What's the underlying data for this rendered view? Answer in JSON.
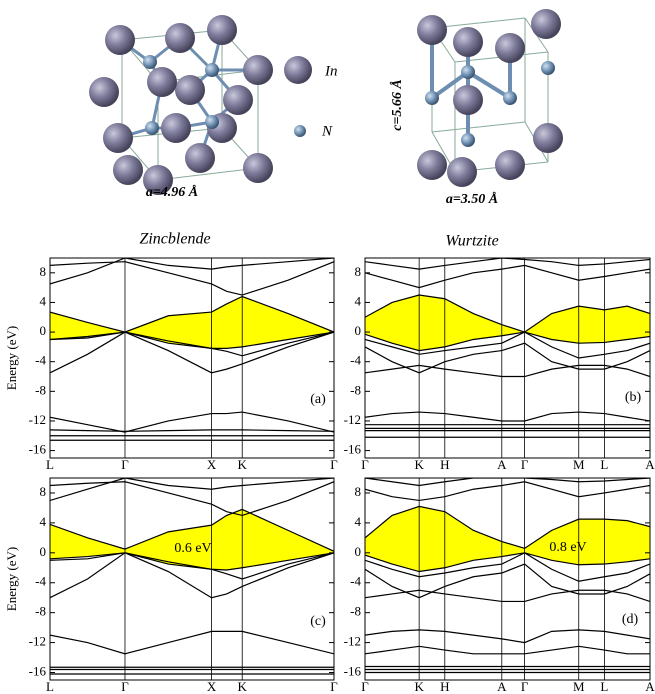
{
  "structures": {
    "legend": [
      "In",
      "N"
    ],
    "zincblende": {
      "lattice": "a=4.96 Å",
      "name": "Zincblende"
    },
    "wurtzite": {
      "lattice_a": "a=3.50 Å",
      "lattice_c": "c=5.66 Å",
      "name": "Wurtzite"
    }
  },
  "chart_data": [
    {
      "type": "line",
      "panel_label": "(a)",
      "y_label": "Energy (eV)",
      "x": [
        0,
        0.433,
        0.866,
        1.366,
        1.866,
        2.04,
        2.22,
        2.75,
        3.28
      ],
      "xlim": [
        0,
        3.28
      ],
      "xticks": [
        {
          "value": 0,
          "label": "L"
        },
        {
          "value": 0.866,
          "label": "Γ"
        },
        {
          "value": 1.866,
          "label": "X"
        },
        {
          "value": 2.22,
          "label": "K"
        },
        {
          "value": 3.28,
          "label": "Γ"
        }
      ],
      "ylim": [
        -17,
        10
      ],
      "yticks": [
        8,
        4,
        0,
        -4,
        -8,
        -12,
        -16
      ],
      "fill_between": [
        0,
        1
      ],
      "fill_color": "#ffff00",
      "series": [
        {
          "color": "#000000",
          "values": [
            2.7,
            1.3,
            0,
            2.2,
            2.7,
            3.8,
            4.8,
            2.5,
            0
          ]
        },
        {
          "color": "#000000",
          "values": [
            -1.0,
            -0.6,
            0,
            -1.5,
            -2.2,
            -2.2,
            -2.0,
            -1.0,
            0
          ]
        },
        {
          "color": "#000000",
          "values": [
            6.5,
            8,
            10,
            9,
            8.5,
            8.8,
            9,
            9.5,
            10
          ]
        },
        {
          "color": "#000000",
          "values": [
            9,
            9.3,
            9.5,
            8,
            6.5,
            5.5,
            5,
            7,
            9.5
          ]
        },
        {
          "color": "#000000",
          "values": [
            -1.0,
            -0.8,
            0,
            -1.2,
            -2.2,
            -2.6,
            -3.2,
            -1.5,
            0
          ]
        },
        {
          "color": "#000000",
          "values": [
            -5.5,
            -3,
            0,
            -2.5,
            -5.5,
            -5,
            -4.3,
            -2,
            0
          ]
        },
        {
          "color": "#000000",
          "values": [
            -11.5,
            -12.5,
            -13.5,
            -12,
            -11,
            -11,
            -10.8,
            -12,
            -13.5
          ]
        },
        {
          "color": "#000000",
          "values": [
            -13.2,
            -13.3,
            -13.4,
            -13.3,
            -13.2,
            -13.2,
            -13.2,
            -13.3,
            -13.4
          ]
        },
        {
          "color": "#000000",
          "values": [
            -14,
            -14,
            -14,
            -14,
            -14,
            -14,
            -14,
            -14,
            -14
          ]
        },
        {
          "color": "#000000",
          "values": [
            -14.6,
            -14.6,
            -14.6,
            -14.6,
            -14.6,
            -14.6,
            -14.6,
            -14.6,
            -14.6
          ]
        }
      ]
    },
    {
      "type": "line",
      "panel_label": "(b)",
      "x": [
        0,
        0.095,
        0.19,
        0.28,
        0.38,
        0.48,
        0.56,
        0.655,
        0.75,
        0.84,
        0.92,
        1.0
      ],
      "xlim": [
        0,
        1
      ],
      "xticks": [
        {
          "value": 0,
          "label": "Γ"
        },
        {
          "value": 0.19,
          "label": "K"
        },
        {
          "value": 0.28,
          "label": "H"
        },
        {
          "value": 0.48,
          "label": "A"
        },
        {
          "value": 0.56,
          "label": "Γ"
        },
        {
          "value": 0.75,
          "label": "M"
        },
        {
          "value": 0.84,
          "label": "L"
        },
        {
          "value": 1.0,
          "label": "A"
        }
      ],
      "ylim": [
        -17,
        10
      ],
      "yticks": [
        8,
        4,
        0,
        -4,
        -8,
        -12,
        -16
      ],
      "fill_between": [
        0,
        1
      ],
      "fill_color": "#ffff00",
      "series": [
        {
          "color": "#000000",
          "values": [
            2,
            4,
            5,
            4.5,
            2.5,
            1,
            0,
            2.5,
            3.5,
            3,
            3.5,
            2.5
          ]
        },
        {
          "color": "#000000",
          "values": [
            -0.3,
            -1.5,
            -2.5,
            -2,
            -1,
            -0.5,
            0,
            -1,
            -1.5,
            -1.4,
            -1,
            -0.6
          ]
        },
        {
          "color": "#000000",
          "values": [
            8,
            7,
            6,
            7,
            8,
            8.5,
            9,
            8,
            7,
            7.5,
            8,
            8.5
          ]
        },
        {
          "color": "#000000",
          "values": [
            9.5,
            9,
            8.5,
            9,
            9.5,
            10,
            9.8,
            9.5,
            9,
            9.2,
            9.5,
            9.8
          ]
        },
        {
          "color": "#000000",
          "values": [
            -1,
            -2,
            -3,
            -2.5,
            -2,
            -1.5,
            0,
            -2,
            -3.5,
            -3,
            -2.5,
            -1.5
          ]
        },
        {
          "color": "#000000",
          "values": [
            -2,
            -4,
            -5.5,
            -4,
            -3,
            -2.5,
            -1.5,
            -4,
            -5,
            -5,
            -4,
            -2.5
          ]
        },
        {
          "color": "#000000",
          "values": [
            -5.5,
            -5,
            -4.5,
            -5,
            -5.5,
            -6,
            -6,
            -5,
            -4.5,
            -4.5,
            -5,
            -6
          ]
        },
        {
          "color": "#000000",
          "values": [
            -11.5,
            -11,
            -10.8,
            -11,
            -11.5,
            -12,
            -12,
            -11,
            -10.8,
            -11,
            -11.5,
            -12
          ]
        },
        {
          "color": "#000000",
          "values": [
            -12.5,
            -12.5,
            -12.5,
            -12.5,
            -12.5,
            -12.5,
            -12.5,
            -12.5,
            -12.5,
            -12.5,
            -12.5,
            -12.5
          ]
        },
        {
          "color": "#000000",
          "values": [
            -13,
            -13,
            -13,
            -13,
            -13,
            -13,
            -13,
            -13,
            -13,
            -13,
            -13,
            -13
          ]
        },
        {
          "color": "#000000",
          "values": [
            -13.3,
            -13.3,
            -13.3,
            -13.3,
            -13.3,
            -13.3,
            -13.3,
            -13.3,
            -13.3,
            -13.3,
            -13.3,
            -13.3
          ]
        },
        {
          "color": "#000000",
          "values": [
            -14.2,
            -14.2,
            -14.2,
            -14.2,
            -14.2,
            -14.2,
            -14.2,
            -14.2,
            -14.2,
            -14.2,
            -14.2,
            -14.2
          ]
        }
      ]
    },
    {
      "type": "line",
      "panel_label": "(c)",
      "y_label": "Energy (eV)",
      "annotation": "0.6 eV",
      "x": [
        0,
        0.433,
        0.866,
        1.366,
        1.866,
        2.04,
        2.22,
        2.75,
        3.28
      ],
      "xlim": [
        0,
        3.28
      ],
      "xticks": [
        {
          "value": 0,
          "label": "L"
        },
        {
          "value": 0.866,
          "label": "Γ"
        },
        {
          "value": 1.866,
          "label": "X"
        },
        {
          "value": 2.22,
          "label": "K"
        },
        {
          "value": 3.28,
          "label": "Γ"
        }
      ],
      "ylim": [
        -17,
        10
      ],
      "yticks": [
        8,
        4,
        0,
        -4,
        -8,
        -12,
        -16
      ],
      "fill_between": [
        0,
        1
      ],
      "fill_color": "#ffff00",
      "series": [
        {
          "color": "#000000",
          "values": [
            3.8,
            2,
            0.5,
            2.8,
            3.7,
            5,
            5.8,
            3,
            0.2
          ]
        },
        {
          "color": "#000000",
          "values": [
            -0.8,
            -0.5,
            0,
            -1.5,
            -2.2,
            -2.3,
            -2.0,
            -1.0,
            0
          ]
        },
        {
          "color": "#000000",
          "values": [
            7,
            8.5,
            10,
            9,
            8.5,
            8.8,
            9,
            9.5,
            10
          ]
        },
        {
          "color": "#000000",
          "values": [
            9,
            9.3,
            9.5,
            8,
            6.5,
            5.5,
            5,
            7,
            9.5
          ]
        },
        {
          "color": "#000000",
          "values": [
            -1.0,
            -0.8,
            0,
            -1.2,
            -2.2,
            -2.8,
            -3.5,
            -1.5,
            0
          ]
        },
        {
          "color": "#000000",
          "values": [
            -6,
            -3.5,
            0,
            -2.5,
            -6,
            -5.5,
            -4.5,
            -2,
            0
          ]
        },
        {
          "color": "#000000",
          "values": [
            -11,
            -12,
            -13.5,
            -12,
            -10.5,
            -10.5,
            -10.5,
            -12,
            -13.5
          ]
        },
        {
          "color": "#000000",
          "values": [
            -15.3,
            -15.3,
            -15.3,
            -15.3,
            -15.3,
            -15.3,
            -15.3,
            -15.3,
            -15.3
          ]
        },
        {
          "color": "#000000",
          "values": [
            -15.6,
            -15.6,
            -15.6,
            -15.6,
            -15.6,
            -15.6,
            -15.6,
            -15.6,
            -15.6
          ]
        },
        {
          "color": "#000000",
          "values": [
            -16.2,
            -16.2,
            -16.2,
            -16.2,
            -16.2,
            -16.2,
            -16.2,
            -16.2,
            -16.2
          ]
        }
      ]
    },
    {
      "type": "line",
      "panel_label": "(d)",
      "annotation": "0.8 eV",
      "x": [
        0,
        0.095,
        0.19,
        0.28,
        0.38,
        0.48,
        0.56,
        0.655,
        0.75,
        0.84,
        0.92,
        1.0
      ],
      "xlim": [
        0,
        1
      ],
      "xticks": [
        {
          "value": 0,
          "label": "Γ"
        },
        {
          "value": 0.19,
          "label": "K"
        },
        {
          "value": 0.28,
          "label": "H"
        },
        {
          "value": 0.48,
          "label": "A"
        },
        {
          "value": 0.56,
          "label": "Γ"
        },
        {
          "value": 0.75,
          "label": "M"
        },
        {
          "value": 0.84,
          "label": "L"
        },
        {
          "value": 1.0,
          "label": "A"
        }
      ],
      "ylim": [
        -17,
        10
      ],
      "yticks": [
        8,
        4,
        0,
        -4,
        -8,
        -12,
        -16
      ],
      "fill_between": [
        0,
        1
      ],
      "fill_color": "#ffff00",
      "series": [
        {
          "color": "#000000",
          "values": [
            2,
            5,
            6.2,
            5.5,
            3,
            1.5,
            0.6,
            3,
            4.5,
            4.5,
            4.3,
            3.5
          ]
        },
        {
          "color": "#000000",
          "values": [
            -0.3,
            -1.5,
            -2.5,
            -2,
            -1,
            -0.5,
            0,
            -1,
            -1.6,
            -1.5,
            -1.2,
            -0.8
          ]
        },
        {
          "color": "#000000",
          "values": [
            8.5,
            7.5,
            7,
            7.5,
            8.5,
            9,
            9.5,
            8.5,
            7.5,
            8,
            8.5,
            9
          ]
        },
        {
          "color": "#000000",
          "values": [
            10,
            9.5,
            9,
            9.5,
            10,
            10,
            10,
            9.8,
            9.5,
            9.6,
            9.8,
            10
          ]
        },
        {
          "color": "#000000",
          "values": [
            -1,
            -2.2,
            -3.2,
            -2.7,
            -2,
            -1.5,
            0,
            -2.2,
            -3.8,
            -3.2,
            -2.7,
            -1.5
          ]
        },
        {
          "color": "#000000",
          "values": [
            -2.2,
            -4.5,
            -6,
            -4.5,
            -3.2,
            -2.7,
            -1.5,
            -4.5,
            -5.5,
            -5.5,
            -4.5,
            -2.8
          ]
        },
        {
          "color": "#000000",
          "values": [
            -6,
            -5.5,
            -5,
            -5.5,
            -6,
            -6.5,
            -6.5,
            -5.5,
            -5,
            -5,
            -5.5,
            -6.5
          ]
        },
        {
          "color": "#000000",
          "values": [
            -11,
            -10.5,
            -10.3,
            -10.5,
            -11,
            -11.5,
            -12,
            -10.5,
            -10.3,
            -10.5,
            -11,
            -11.5
          ]
        },
        {
          "color": "#000000",
          "values": [
            -13.5,
            -13,
            -12.5,
            -13,
            -13.5,
            -13.5,
            -13.5,
            -13,
            -12.5,
            -13,
            -13.5,
            -13.5
          ]
        },
        {
          "color": "#000000",
          "values": [
            -15.2,
            -15.2,
            -15.2,
            -15.2,
            -15.2,
            -15.2,
            -15.2,
            -15.2,
            -15.2,
            -15.2,
            -15.2,
            -15.2
          ]
        },
        {
          "color": "#000000",
          "values": [
            -15.6,
            -15.6,
            -15.6,
            -15.6,
            -15.6,
            -15.6,
            -15.6,
            -15.6,
            -15.6,
            -15.6,
            -15.6,
            -15.6
          ]
        },
        {
          "color": "#000000",
          "values": [
            -16,
            -16,
            -16,
            -16,
            -16,
            -16,
            -16,
            -16,
            -16,
            -16,
            -16,
            -16
          ]
        }
      ]
    }
  ]
}
